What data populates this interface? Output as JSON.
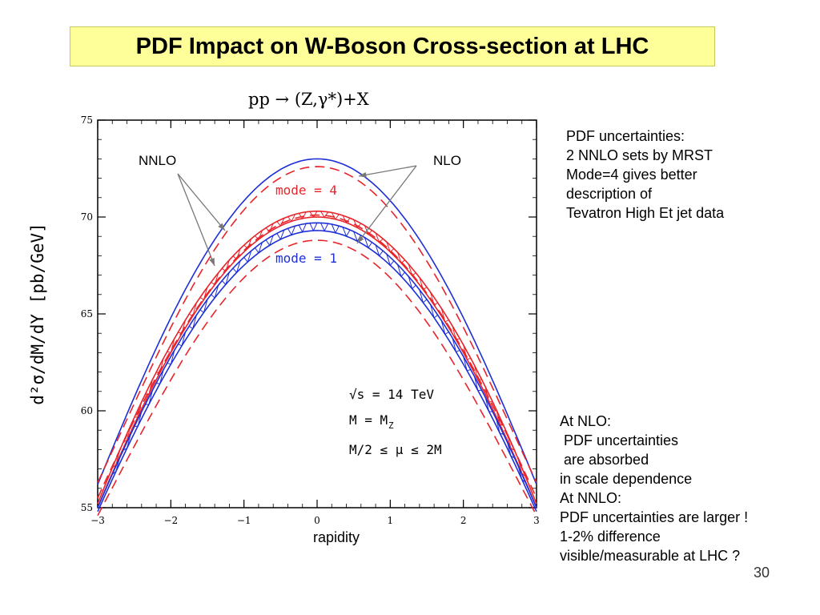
{
  "slide": {
    "title": "PDF Impact on W-Boson Cross-section at LHC",
    "slide_number": "30"
  },
  "notes": {
    "top": [
      "PDF uncertainties:",
      "2 NNLO sets by MRST",
      "Mode=4 gives better",
      "description of",
      "Tevatron High Et jet data"
    ],
    "bottom": [
      "At NLO:",
      " PDF uncertainties",
      " are absorbed",
      "in scale dependence",
      "At NNLO:",
      "PDF uncertainties are larger !",
      "1-2% difference",
      "visible/measurable at LHC ?"
    ]
  },
  "colors": {
    "nlo_red": "#e8242b",
    "nnlo_blue": "#1d2fd6",
    "title_bg": "#ffff99"
  },
  "chart_data": {
    "type": "line",
    "title": "pp → (Z,γ*)+X",
    "xlabel": "rapidity",
    "ylabel": "d²σ/dM/dY [pb/GeV]",
    "xlim": [
      -3,
      3
    ],
    "ylim": [
      55,
      75
    ],
    "xticks": [
      -3,
      -2,
      -1,
      0,
      1,
      2,
      3
    ],
    "yticks": [
      55,
      60,
      65,
      70,
      75
    ],
    "annotations": {
      "nnlo": "NNLO",
      "nlo": "NLO",
      "mode4": "mode = 4",
      "mode1": "mode = 1",
      "energy": "√s = 14 TeV",
      "mass": "M = M",
      "mass_sub": "Z",
      "scale": "M/2 ≤ μ ≤ 2M"
    },
    "series": [
      {
        "name": "NLO mode = 4 (upper scale)",
        "style": "solid",
        "color": "#1d2fd6",
        "x": [
          -3,
          -2,
          -1,
          0,
          1,
          2,
          3
        ],
        "y": [
          56.2,
          64.8,
          70.7,
          73.0,
          70.7,
          64.8,
          56.2
        ]
      },
      {
        "name": "NLO mode = 4 (lower scale)",
        "style": "dashed",
        "color": "#e8242b",
        "x": [
          -3,
          -2,
          -1,
          0,
          1,
          2,
          3
        ],
        "y": [
          56.3,
          64.3,
          70.0,
          72.6,
          70.0,
          64.3,
          56.3
        ]
      },
      {
        "name": "NNLO mode = 4 upper",
        "style": "solid",
        "color": "#e8242b",
        "x": [
          -3,
          -2,
          -1,
          0,
          1,
          2,
          3
        ],
        "y": [
          55.2,
          63.4,
          68.5,
          70.3,
          68.5,
          63.4,
          55.2
        ]
      },
      {
        "name": "NNLO mode = 4 lower",
        "style": "solid",
        "color": "#e8242b",
        "x": [
          -3,
          -2,
          -1,
          0,
          1,
          2,
          3
        ],
        "y": [
          55.0,
          63.0,
          68.1,
          70.0,
          68.1,
          63.0,
          55.0
        ]
      },
      {
        "name": "NNLO mode = 1 upper",
        "style": "solid",
        "color": "#1d2fd6",
        "x": [
          -3,
          -2,
          -1,
          0,
          1,
          2,
          3
        ],
        "y": [
          55.0,
          62.8,
          67.8,
          69.7,
          67.8,
          62.8,
          55.0
        ]
      },
      {
        "name": "NNLO mode = 1 lower",
        "style": "solid",
        "color": "#1d2fd6",
        "x": [
          -3,
          -2,
          -1,
          0,
          1,
          2,
          3
        ],
        "y": [
          54.8,
          62.4,
          67.4,
          69.3,
          67.4,
          62.4,
          54.8
        ]
      },
      {
        "name": "NLO mode = 1 (dashed)",
        "style": "dashed",
        "color": "#e8242b",
        "x": [
          -3,
          -2,
          -1,
          0,
          1,
          2,
          3
        ],
        "y": [
          54.6,
          61.6,
          66.4,
          68.8,
          66.4,
          61.6,
          54.6
        ]
      },
      {
        "name": "NLO mode = 1 (inner dashed)",
        "style": "dashed",
        "color": "#e8242b",
        "x": [
          -3,
          -2,
          -1,
          0,
          1,
          2,
          3
        ],
        "y": [
          55.5,
          63.1,
          68.2,
          70.1,
          68.2,
          63.1,
          55.5
        ]
      }
    ],
    "grid": false,
    "legend": "none"
  }
}
